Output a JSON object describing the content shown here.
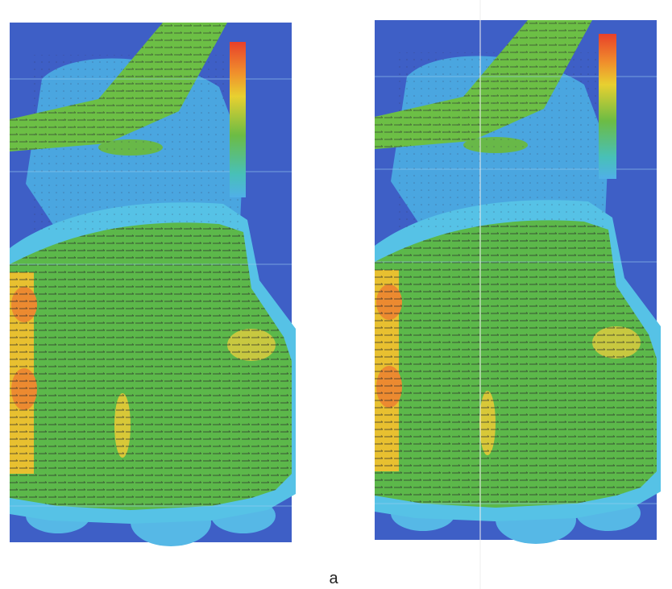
{
  "caption": "a"
}
